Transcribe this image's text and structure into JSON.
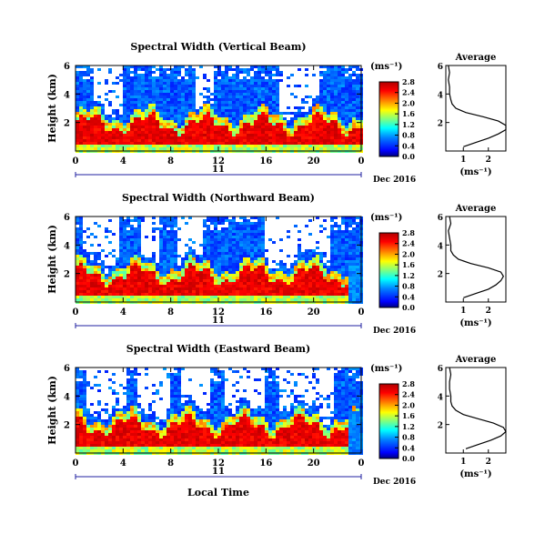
{
  "chart_data": [
    {
      "type": "heatmap",
      "title": "Spectral Width (Vertical Beam)",
      "ylabel": "Height (km)",
      "xlabel": "",
      "xlim": [
        0,
        24
      ],
      "ylim": [
        0,
        6
      ],
      "x_ticks": [
        "0",
        "4",
        "8",
        "12",
        "16",
        "20",
        "0"
      ],
      "y_ticks": [
        "2",
        "4",
        "6"
      ],
      "date_day": "11",
      "date_label": "Dec 2016",
      "unit_label": "(ms⁻¹)",
      "colorbar_ticks": [
        "0.0",
        "0.4",
        "0.8",
        "1.2",
        "1.6",
        "2.0",
        "2.4",
        "2.8"
      ],
      "colorbar_range": [
        0,
        2.8
      ],
      "profile": {
        "title": "Average",
        "xlabel": "(ms⁻¹)",
        "x_ticks": [
          "1",
          "2"
        ],
        "y_ticks": [
          "2",
          "4",
          "6"
        ],
        "xlim": [
          0.3,
          2.7
        ],
        "height_km": [
          0.3,
          0.6,
          0.9,
          1.2,
          1.5,
          1.8,
          2.1,
          2.4,
          2.7,
          3.0,
          3.3,
          3.6,
          4.0,
          4.5,
          5.0,
          5.5,
          6.0
        ],
        "width_ms": [
          1.0,
          1.5,
          2.0,
          2.4,
          2.7,
          2.7,
          2.4,
          1.8,
          1.1,
          0.7,
          0.55,
          0.5,
          0.45,
          0.45,
          0.4,
          0.45,
          0.4
        ]
      }
    },
    {
      "type": "heatmap",
      "title": "Spectral Width (Northward Beam)",
      "ylabel": "Height (km)",
      "xlabel": "",
      "xlim": [
        0,
        24
      ],
      "ylim": [
        0,
        6
      ],
      "x_ticks": [
        "0",
        "4",
        "8",
        "12",
        "16",
        "20",
        "0"
      ],
      "y_ticks": [
        "2",
        "4",
        "6"
      ],
      "date_day": "11",
      "date_label": "Dec 2016",
      "unit_label": "(ms⁻¹)",
      "colorbar_ticks": [
        "0.0",
        "0.4",
        "0.8",
        "1.2",
        "1.6",
        "2.0",
        "2.4",
        "2.8"
      ],
      "colorbar_range": [
        0,
        2.8
      ],
      "profile": {
        "title": "Average",
        "xlabel": "(ms⁻¹)",
        "x_ticks": [
          "1",
          "2"
        ],
        "y_ticks": [
          "2",
          "4",
          "6"
        ],
        "xlim": [
          0.3,
          2.7
        ],
        "height_km": [
          0.3,
          0.6,
          0.9,
          1.2,
          1.5,
          1.8,
          2.1,
          2.4,
          2.7,
          3.0,
          3.3,
          3.6,
          4.0,
          4.5,
          5.0,
          5.5,
          6.0
        ],
        "width_ms": [
          1.0,
          1.5,
          2.0,
          2.3,
          2.5,
          2.6,
          2.5,
          2.0,
          1.3,
          0.8,
          0.6,
          0.5,
          0.5,
          0.45,
          0.4,
          0.5,
          0.45
        ]
      }
    },
    {
      "type": "heatmap",
      "title": "Spectral Width (Eastward Beam)",
      "ylabel": "Height (km)",
      "xlabel": "Local Time",
      "xlim": [
        0,
        24
      ],
      "ylim": [
        0,
        6
      ],
      "x_ticks": [
        "0",
        "4",
        "8",
        "12",
        "16",
        "20",
        "0"
      ],
      "y_ticks": [
        "2",
        "4",
        "6"
      ],
      "date_day": "11",
      "date_label": "Dec 2016",
      "unit_label": "(ms⁻¹)",
      "colorbar_ticks": [
        "0.0",
        "0.4",
        "0.8",
        "1.2",
        "1.6",
        "2.0",
        "2.4",
        "2.8"
      ],
      "colorbar_range": [
        0,
        2.8
      ],
      "profile": {
        "title": "Average",
        "xlabel": "(ms⁻¹)",
        "x_ticks": [
          "1",
          "2"
        ],
        "y_ticks": [
          "2",
          "4",
          "6"
        ],
        "xlim": [
          0.3,
          2.7
        ],
        "height_km": [
          0.3,
          0.6,
          0.9,
          1.2,
          1.5,
          1.8,
          2.1,
          2.4,
          2.7,
          3.0,
          3.3,
          3.6,
          4.0,
          4.5,
          5.0,
          5.5,
          6.0
        ],
        "width_ms": [
          1.1,
          1.6,
          2.1,
          2.5,
          2.7,
          2.6,
          2.2,
          1.6,
          1.0,
          0.7,
          0.55,
          0.5,
          0.5,
          0.45,
          0.45,
          0.5,
          0.45
        ]
      }
    }
  ]
}
